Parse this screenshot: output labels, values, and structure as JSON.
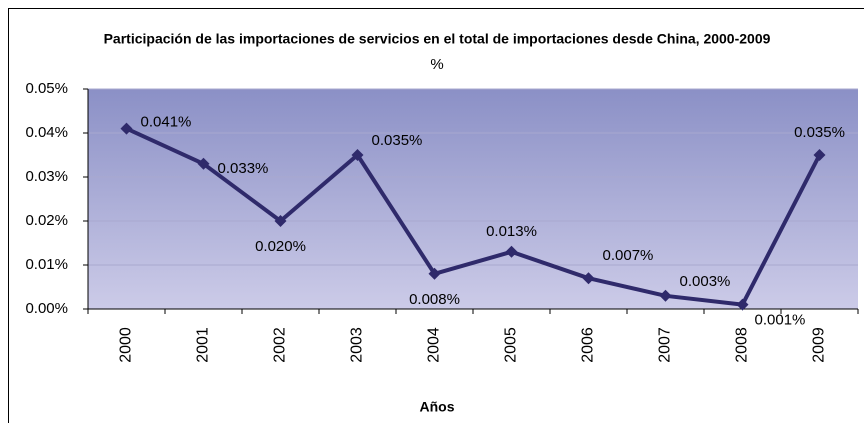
{
  "chart_data": {
    "type": "line",
    "title": "Participación de las importaciones de servicios en el total de importaciones desde China, 2000-2009",
    "subtitle": "%",
    "x_label": "Años",
    "categories": [
      "2000",
      "2001",
      "2002",
      "2003",
      "2004",
      "2005",
      "2006",
      "2007",
      "2008",
      "2009"
    ],
    "values": [
      0.041,
      0.033,
      0.02,
      0.035,
      0.008,
      0.013,
      0.007,
      0.003,
      0.001,
      0.035
    ],
    "value_labels": [
      "0.041%",
      "0.033%",
      "0.020%",
      "0.035%",
      "0.008%",
      "0.013%",
      "0.007%",
      "0.003%",
      "0.001%",
      "0.035%"
    ],
    "color": "#2f2a6b",
    "ylim": [
      0,
      0.05
    ],
    "yticks": [
      {
        "value": 0,
        "label": "0.00%"
      },
      {
        "value": 0.01,
        "label": "0.01%"
      },
      {
        "value": 0.02,
        "label": "0.02%"
      },
      {
        "value": 0.03,
        "label": "0.03%"
      },
      {
        "value": 0.04,
        "label": "0.04%"
      },
      {
        "value": 0.05,
        "label": "0.05%"
      }
    ],
    "grid": true
  }
}
